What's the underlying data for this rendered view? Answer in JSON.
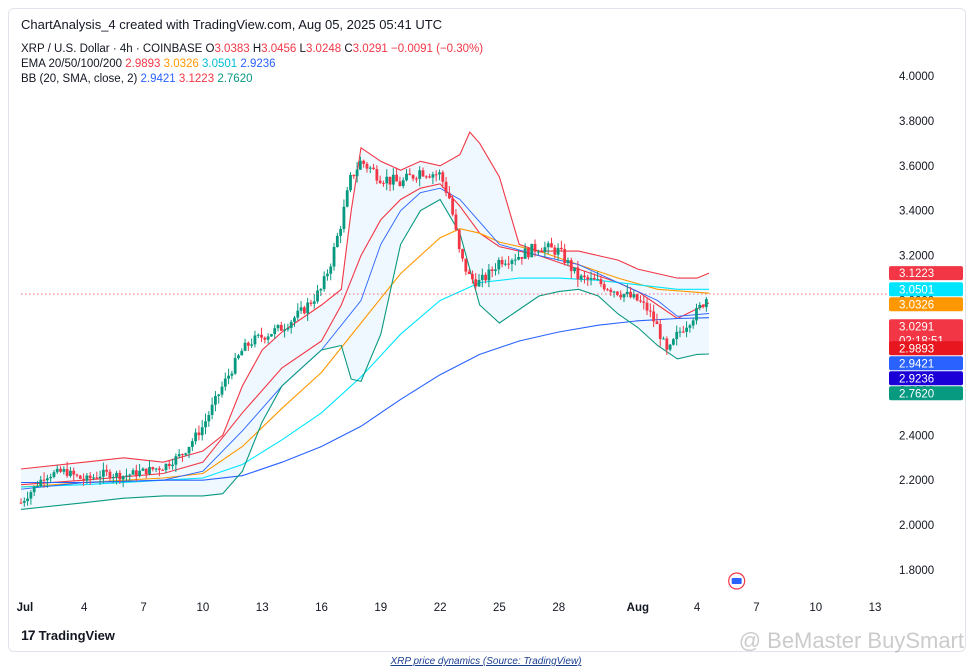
{
  "header": {
    "title": "ChartAnalysis_4 created with TradingView.com, Aug 05, 2025 05:41 UTC"
  },
  "legend": {
    "symbol_line": "XRP / U.S. Dollar · 4h · COINBASE",
    "o_label": "O",
    "o_value": "3.0383",
    "h_label": "H",
    "h_value": "3.0456",
    "l_label": "L",
    "l_value": "3.0248",
    "c_label": "C",
    "c_value": "3.0291",
    "change": "−0.0091 (−0.30%)",
    "ema_label": "EMA 20/50/100/200",
    "ema_values": [
      "2.9893",
      "3.0326",
      "3.0501",
      "2.9236"
    ],
    "bb_label": "BB (20, SMA, close, 2)",
    "bb_values": [
      "2.9421",
      "3.1223",
      "2.7620"
    ]
  },
  "price_tags": [
    {
      "value": "3.1223",
      "color": "#f23645"
    },
    {
      "value": "3.0501",
      "color": "#00e5ff"
    },
    {
      "value": "3.0326",
      "color": "#ff9800"
    },
    {
      "value": "3.0291",
      "sub": "02:18:51",
      "color": "#f23645"
    },
    {
      "value": "2.9893",
      "color": "#e8171f"
    },
    {
      "value": "2.9421",
      "color": "#2962ff"
    },
    {
      "value": "2.9236",
      "color": "#1a00d6"
    },
    {
      "value": "2.7620",
      "color": "#089981"
    }
  ],
  "footer": {
    "brand": "TradingView",
    "caption": "XRP price dynamics (Source: TradingView)",
    "watermark": "@ BeMaster BuySmart"
  },
  "chart_data": {
    "type": "line",
    "title": "XRP / U.S. Dollar · 4h · COINBASE",
    "ylim": [
      1.68,
      4.12
    ],
    "y_ticks": [
      "4.0000",
      "3.8000",
      "3.6000",
      "3.4000",
      "3.2000",
      "3.0000",
      "2.8000",
      "2.6000",
      "2.4000",
      "2.2000",
      "2.0000",
      "1.8000"
    ],
    "x_ticks": [
      "Jul",
      "4",
      "7",
      "10",
      "13",
      "16",
      "19",
      "22",
      "25",
      "28",
      "Aug",
      "4",
      "7",
      "10",
      "13"
    ],
    "x_tick_days": [
      1,
      4,
      7,
      10,
      13,
      16,
      19,
      22,
      25,
      28,
      32,
      35,
      38,
      41,
      44
    ],
    "x_range_days": [
      0.8,
      44.3
    ],
    "last_price_day": 35.6,
    "last_price": 3.0291,
    "series": [
      {
        "name": "Close",
        "color": "#26a69a",
        "x": [
          0.8,
          2,
          3,
          4,
          5,
          6,
          7,
          8,
          9,
          10,
          11,
          12,
          12.5,
          13,
          14,
          15,
          16,
          16.5,
          17,
          17.5,
          18,
          19,
          20,
          21,
          22,
          22.5,
          23,
          23.5,
          24,
          24.5,
          25,
          26,
          27,
          28,
          29,
          30,
          31,
          32,
          32.5,
          33,
          33.5,
          34,
          35,
          35.6
        ],
        "y": [
          2.1,
          2.22,
          2.24,
          2.2,
          2.23,
          2.22,
          2.24,
          2.26,
          2.32,
          2.44,
          2.62,
          2.78,
          2.82,
          2.84,
          2.88,
          2.95,
          3.05,
          3.18,
          3.35,
          3.55,
          3.62,
          3.55,
          3.52,
          3.58,
          3.56,
          3.45,
          3.2,
          3.1,
          3.08,
          3.12,
          3.18,
          3.2,
          3.24,
          3.22,
          3.1,
          3.08,
          3.04,
          3.0,
          2.96,
          2.88,
          2.76,
          2.85,
          2.95,
          3.0291
        ]
      },
      {
        "name": "EMA 20",
        "color": "#f23645",
        "x": [
          0.8,
          4,
          8,
          10,
          12,
          14,
          16,
          17,
          18,
          19,
          20,
          21,
          22,
          23,
          24,
          25,
          27,
          29,
          31,
          32,
          33,
          34,
          35.6
        ],
        "y": [
          2.18,
          2.2,
          2.23,
          2.28,
          2.5,
          2.7,
          2.82,
          2.98,
          3.2,
          3.36,
          3.45,
          3.5,
          3.52,
          3.42,
          3.3,
          3.24,
          3.2,
          3.14,
          3.08,
          3.04,
          2.98,
          2.92,
          2.9893
        ]
      },
      {
        "name": "EMA 50",
        "color": "#ff9800",
        "x": [
          0.8,
          4,
          8,
          10,
          12,
          14,
          16,
          18,
          20,
          22,
          23,
          24,
          25,
          27,
          29,
          31,
          33,
          35.6
        ],
        "y": [
          2.17,
          2.19,
          2.21,
          2.23,
          2.35,
          2.52,
          2.68,
          2.9,
          3.12,
          3.28,
          3.32,
          3.3,
          3.26,
          3.22,
          3.16,
          3.1,
          3.05,
          3.0326
        ]
      },
      {
        "name": "EMA 100",
        "color": "#00e5ff",
        "x": [
          0.8,
          4,
          8,
          10,
          12,
          14,
          16,
          18,
          20,
          22,
          24,
          26,
          28,
          30,
          32,
          34,
          35.6
        ],
        "y": [
          2.17,
          2.18,
          2.2,
          2.21,
          2.27,
          2.38,
          2.5,
          2.66,
          2.85,
          3.0,
          3.08,
          3.1,
          3.1,
          3.09,
          3.07,
          3.05,
          3.0501
        ]
      },
      {
        "name": "EMA 200",
        "color": "#2962ff",
        "x": [
          0.8,
          4,
          8,
          10,
          12,
          14,
          16,
          18,
          20,
          22,
          24,
          26,
          28,
          30,
          32,
          34,
          35.6
        ],
        "y": [
          2.19,
          2.19,
          2.2,
          2.2,
          2.22,
          2.28,
          2.35,
          2.44,
          2.56,
          2.67,
          2.76,
          2.82,
          2.86,
          2.89,
          2.91,
          2.92,
          2.9236
        ]
      },
      {
        "name": "BB upper",
        "color": "#f23645",
        "x": [
          0.8,
          4,
          6,
          8,
          10,
          11,
          12,
          13,
          14,
          15,
          16,
          17,
          17.5,
          18,
          19,
          20,
          21,
          22,
          23,
          23.5,
          24,
          25,
          26,
          27,
          28,
          29,
          30,
          31,
          32,
          33,
          34,
          35,
          35.6
        ],
        "y": [
          2.25,
          2.28,
          2.3,
          2.28,
          2.33,
          2.4,
          2.62,
          2.78,
          2.86,
          2.92,
          2.98,
          3.05,
          3.4,
          3.68,
          3.62,
          3.58,
          3.62,
          3.6,
          3.65,
          3.75,
          3.7,
          3.55,
          3.25,
          3.22,
          3.22,
          3.22,
          3.2,
          3.18,
          3.14,
          3.12,
          3.1,
          3.1,
          3.1223
        ]
      },
      {
        "name": "BB basis",
        "color": "#2962ff",
        "x": [
          0.8,
          4,
          8,
          10,
          12,
          14,
          16,
          18,
          19,
          20,
          21,
          22,
          23,
          24,
          25,
          27,
          29,
          31,
          33,
          34,
          35.6
        ],
        "y": [
          2.16,
          2.19,
          2.2,
          2.24,
          2.42,
          2.62,
          2.78,
          3.0,
          3.25,
          3.4,
          3.48,
          3.5,
          3.45,
          3.35,
          3.25,
          3.2,
          3.16,
          3.08,
          3.0,
          2.93,
          2.9421
        ]
      },
      {
        "name": "BB lower",
        "color": "#089981",
        "x": [
          0.8,
          4,
          6,
          8,
          10,
          11,
          12,
          13,
          14,
          15,
          16,
          17,
          17.5,
          18,
          19,
          20,
          21,
          22,
          23,
          24,
          25,
          26,
          27,
          28,
          29,
          30,
          31,
          32,
          33,
          34,
          35,
          35.6
        ],
        "y": [
          2.07,
          2.1,
          2.12,
          2.13,
          2.13,
          2.14,
          2.24,
          2.46,
          2.62,
          2.7,
          2.78,
          2.8,
          2.65,
          2.64,
          2.85,
          3.25,
          3.4,
          3.45,
          3.3,
          2.98,
          2.9,
          2.96,
          3.02,
          3.04,
          3.05,
          3.02,
          2.94,
          2.88,
          2.8,
          2.74,
          2.76,
          2.762
        ]
      }
    ]
  }
}
